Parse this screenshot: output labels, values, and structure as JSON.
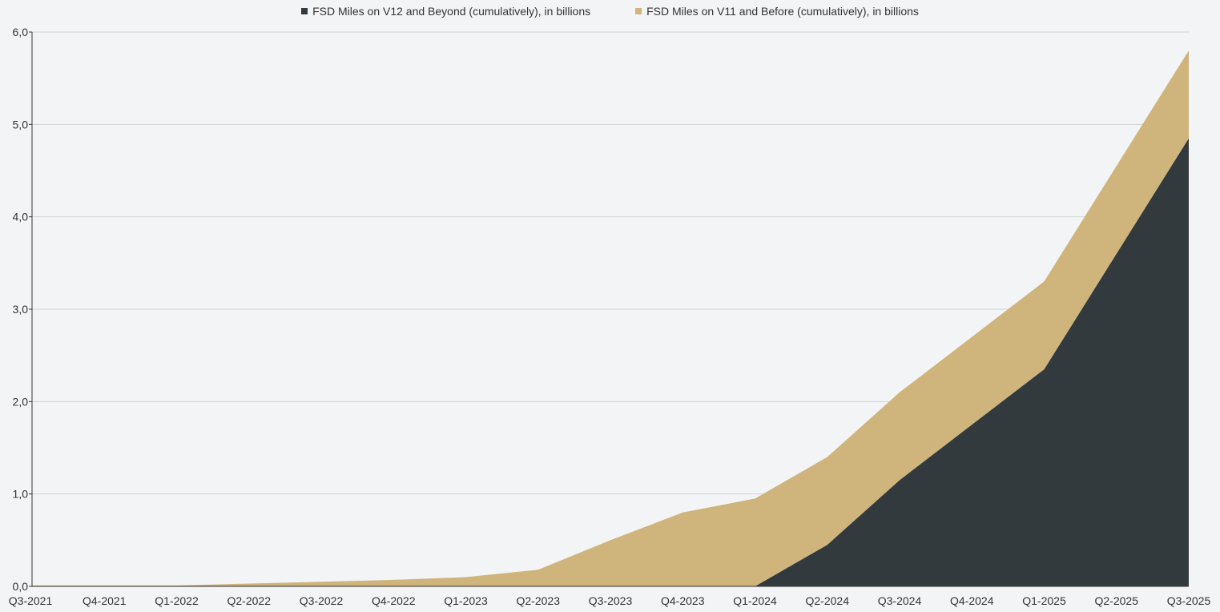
{
  "chart_data": {
    "type": "area",
    "stacked": true,
    "title": "",
    "xlabel": "",
    "ylabel": "",
    "categories": [
      "Q3-2021",
      "Q4-2021",
      "Q1-2022",
      "Q2-2022",
      "Q3-2022",
      "Q4-2022",
      "Q1-2023",
      "Q2-2023",
      "Q3-2023",
      "Q4-2023",
      "Q1-2024",
      "Q2-2024",
      "Q3-2024",
      "Q4-2024",
      "Q1-2025",
      "Q2-2025",
      "Q3-2025"
    ],
    "series": [
      {
        "name": "FSD Miles on V12 and Beyond (cumulatively), in billions",
        "color": "#333a3d",
        "values": [
          0.0,
          0.0,
          0.0,
          0.0,
          0.0,
          0.0,
          0.0,
          0.0,
          0.0,
          0.0,
          0.0,
          0.45,
          1.15,
          1.75,
          2.35,
          3.6,
          4.85
        ]
      },
      {
        "name": "FSD Miles on V11 and Before (cumulatively), in billions",
        "color": "#cfb47c",
        "values": [
          0.01,
          0.01,
          0.01,
          0.03,
          0.05,
          0.07,
          0.1,
          0.18,
          0.5,
          0.8,
          0.95,
          0.95,
          0.95,
          0.95,
          0.95,
          0.95,
          0.95
        ]
      }
    ],
    "ylim": [
      0,
      6
    ],
    "yticks": [
      0,
      1,
      2,
      3,
      4,
      5,
      6
    ],
    "ytick_labels": [
      "0,0",
      "1,0",
      "2,0",
      "3,0",
      "4,0",
      "5,0",
      "6,0"
    ],
    "grid": true,
    "legend_position": "top-center"
  }
}
